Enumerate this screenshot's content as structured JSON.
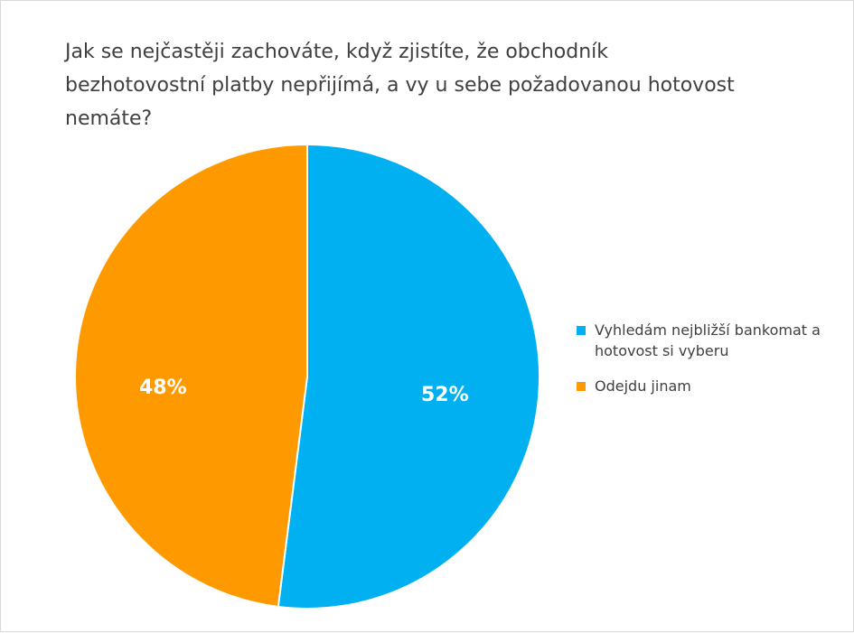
{
  "colors": {
    "blue": "#00b0f0",
    "orange": "#ff9900"
  },
  "chart_data": {
    "type": "pie",
    "title": "Jak se nejčastěji zachováte, když zjistíte, že obchodník bezhotovostní platby nepřijímá, a vy u sebe požadovanou hotovost nemáte?",
    "categories": [
      "Vyhledám nejbližší bankomat a hotovost si vyberu",
      "Odejdu jinam"
    ],
    "values": [
      52,
      48
    ],
    "labels": [
      "52%",
      "48%"
    ],
    "colors": [
      "#00b0f0",
      "#ff9900"
    ],
    "legend": "right"
  }
}
